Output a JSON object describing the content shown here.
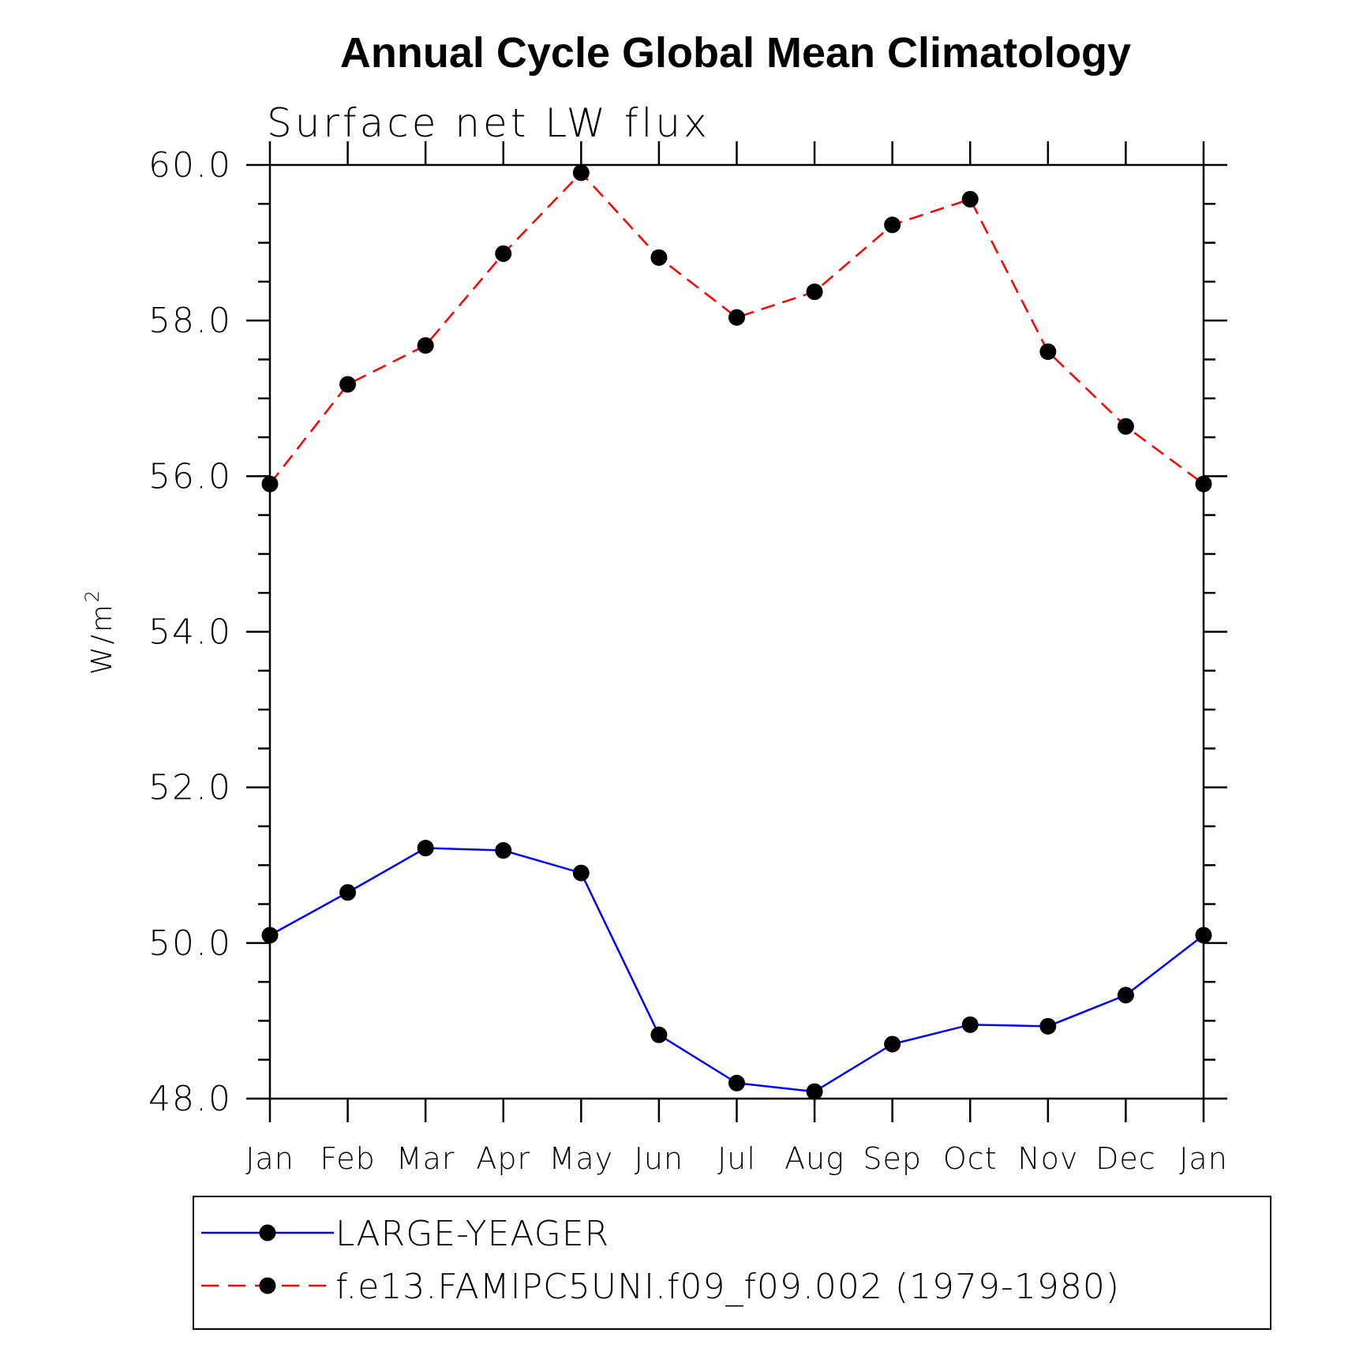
{
  "chart_data": {
    "type": "line",
    "title": "Annual Cycle Global Mean Climatology",
    "subtitle": "Surface net LW flux",
    "ylabel": "W/m",
    "ylabel_superscript": "2",
    "xlabel": "",
    "categories": [
      "Jan",
      "Feb",
      "Mar",
      "Apr",
      "May",
      "Jun",
      "Jul",
      "Aug",
      "Sep",
      "Oct",
      "Nov",
      "Dec",
      "Jan"
    ],
    "ylim": [
      48.0,
      60.0
    ],
    "yticks": [
      "48.0",
      "50.0",
      "52.0",
      "54.0",
      "56.0",
      "58.0",
      "60.0"
    ],
    "grid": false,
    "legend_position": "bottom",
    "series": [
      {
        "name": "LARGE-YEAGER",
        "color": "#0000ff",
        "dash": "solid",
        "values": [
          50.1,
          50.65,
          51.22,
          51.19,
          50.9,
          48.82,
          48.2,
          48.09,
          48.7,
          48.95,
          48.93,
          49.33,
          50.1
        ]
      },
      {
        "name": "f.e13.FAMIPC5UNI.f09_f09.002 (1979-1980)",
        "color": "#ff0000",
        "dash": "dashed",
        "values": [
          55.9,
          57.18,
          57.68,
          58.86,
          59.9,
          58.81,
          58.04,
          58.37,
          59.23,
          59.56,
          57.6,
          56.64,
          55.9
        ]
      }
    ]
  }
}
